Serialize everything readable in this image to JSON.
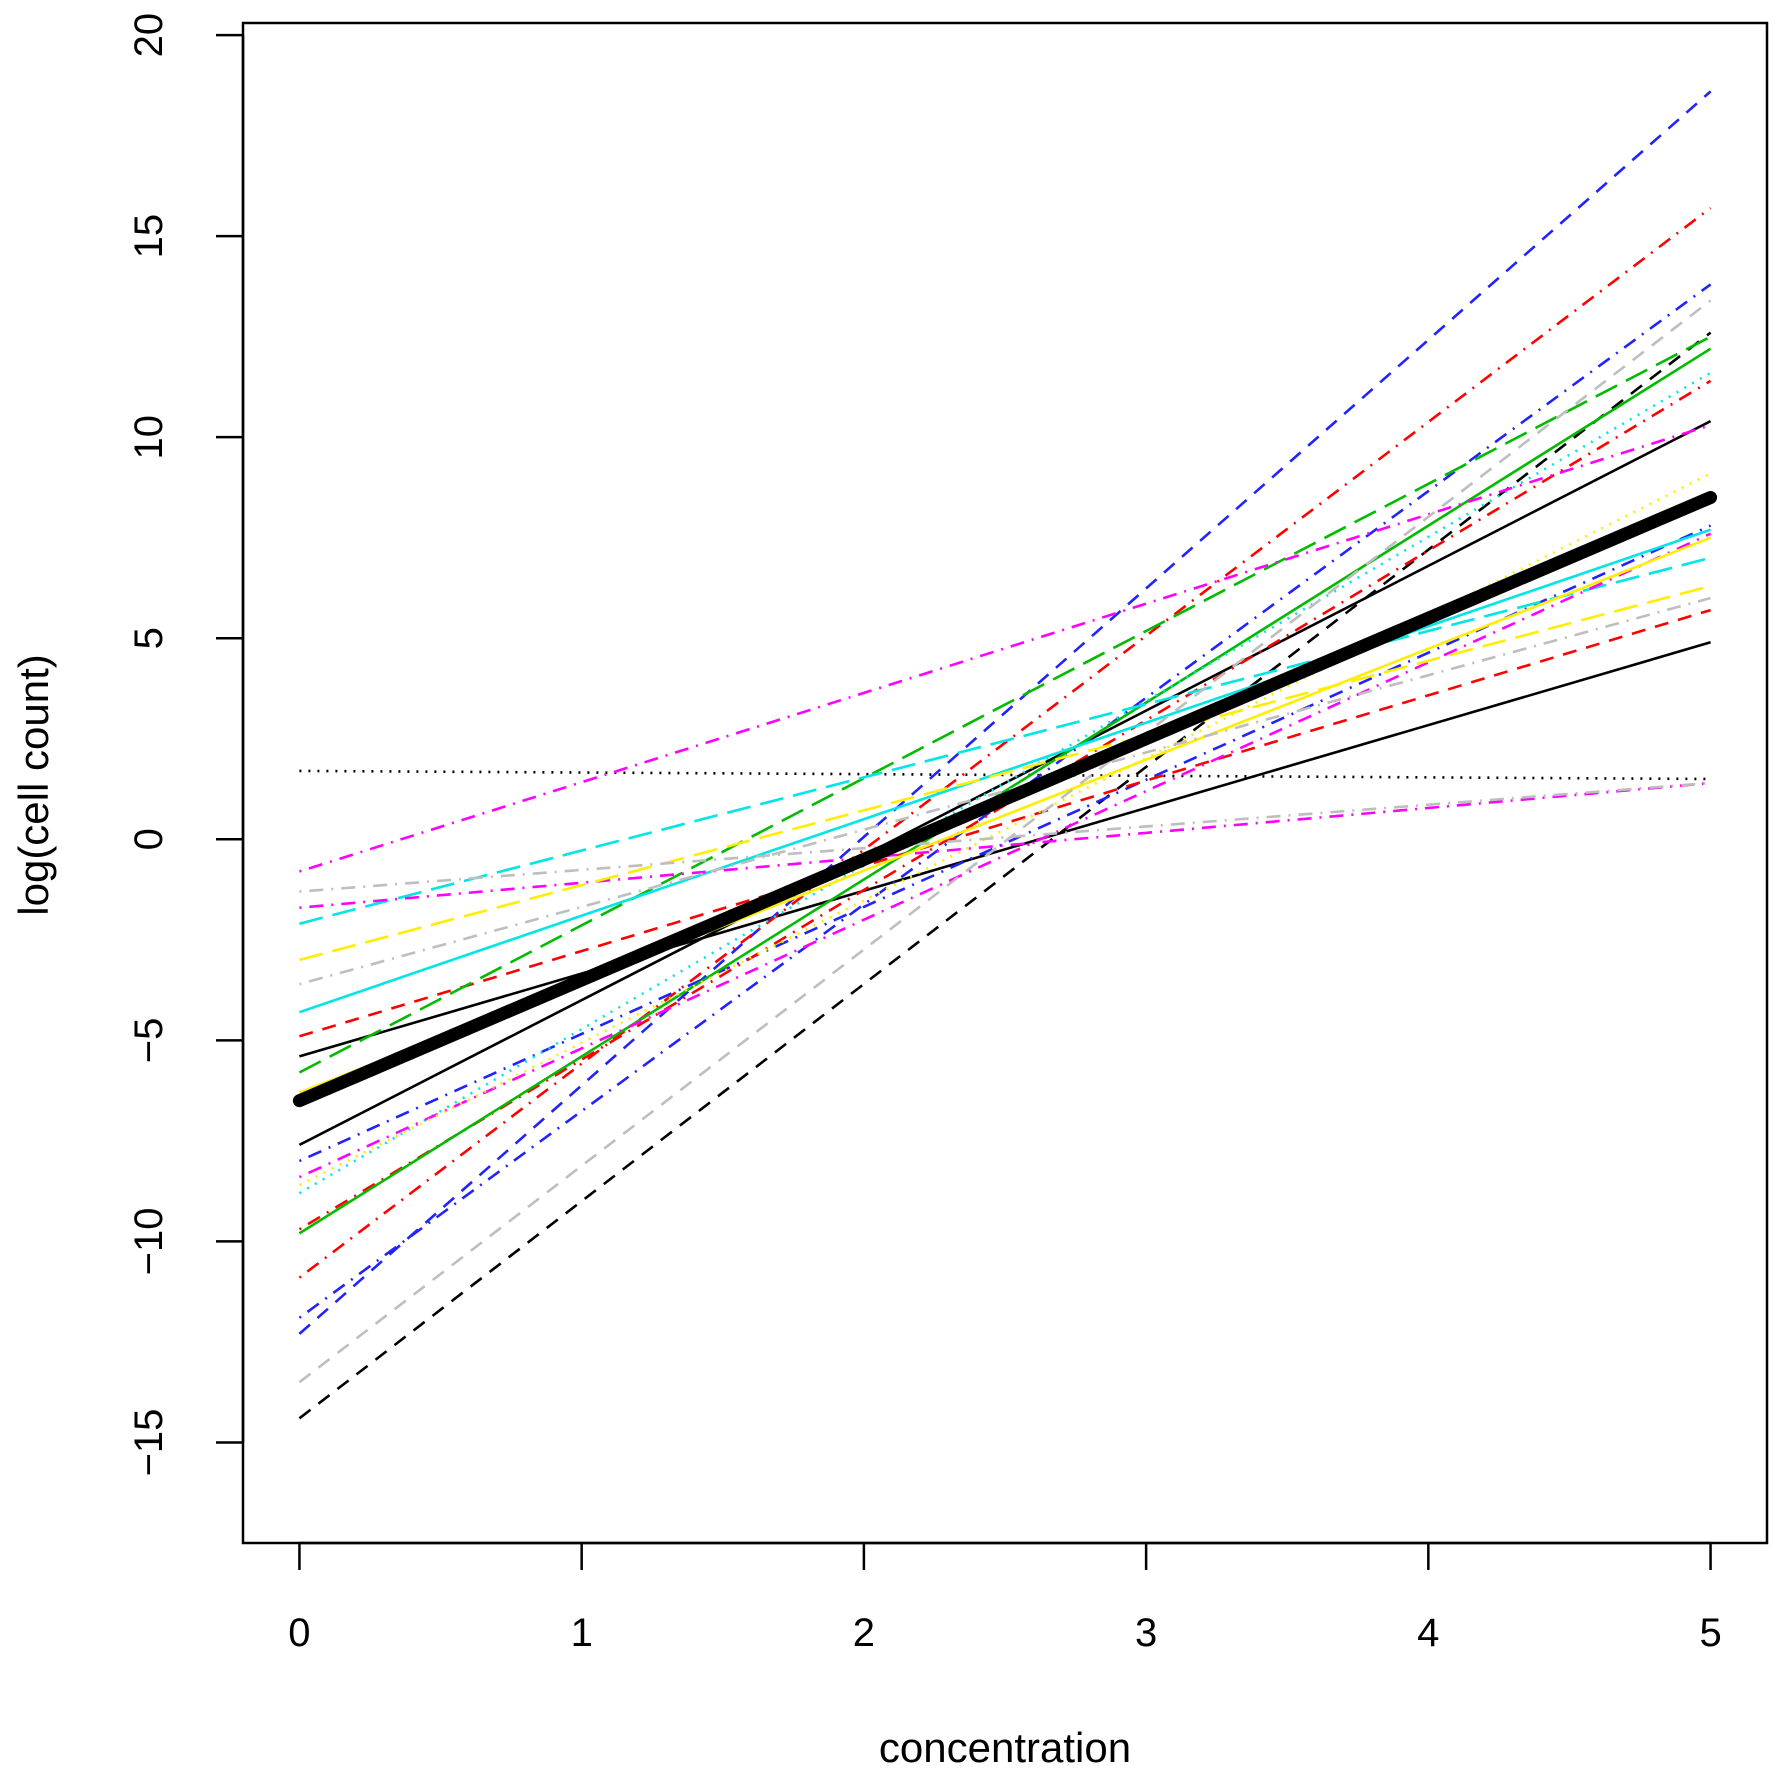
{
  "chart_data": {
    "type": "line",
    "title": "",
    "xlabel": "concentration",
    "ylabel": "log(cell count)",
    "xlim": [
      -0.2,
      5.2
    ],
    "ylim": [
      -17.5,
      20.3
    ],
    "xticks": [
      0,
      1,
      2,
      3,
      4,
      5
    ],
    "yticks": [
      -15,
      -10,
      -5,
      0,
      5,
      10,
      15,
      20
    ],
    "grid": false,
    "legend": "none",
    "series": [
      {
        "color": "#000000",
        "dash": "solid",
        "width": "thick",
        "values": [
          [
            0,
            -6.5
          ],
          [
            5,
            8.5
          ]
        ]
      },
      {
        "color": "#000000",
        "dash": "solid",
        "values": [
          [
            0,
            -5.4
          ],
          [
            5,
            4.9
          ]
        ]
      },
      {
        "color": "#000000",
        "dash": "solid",
        "values": [
          [
            0,
            -7.6
          ],
          [
            5,
            10.4
          ]
        ]
      },
      {
        "color": "#000000",
        "dash": "dashed",
        "values": [
          [
            0,
            -14.4
          ],
          [
            5,
            12.6
          ]
        ]
      },
      {
        "color": "#000000",
        "dash": "dotted",
        "values": [
          [
            0,
            1.7
          ],
          [
            5,
            1.5
          ]
        ]
      },
      {
        "color": "#2222ff",
        "dash": "dashed",
        "values": [
          [
            0,
            -12.3
          ],
          [
            5,
            18.6
          ]
        ]
      },
      {
        "color": "#2222ff",
        "dash": "dashdot",
        "values": [
          [
            0,
            -11.9
          ],
          [
            5,
            13.8
          ]
        ]
      },
      {
        "color": "#2222ff",
        "dash": "dashdot",
        "values": [
          [
            0,
            -8.0
          ],
          [
            5,
            7.8
          ]
        ]
      },
      {
        "color": "#ff0000",
        "dash": "dashdot",
        "values": [
          [
            0,
            -10.9
          ],
          [
            5,
            15.7
          ]
        ]
      },
      {
        "color": "#ff0000",
        "dash": "dashdot",
        "values": [
          [
            0,
            -9.7
          ],
          [
            5,
            11.4
          ]
        ]
      },
      {
        "color": "#ff0000",
        "dash": "dashed",
        "values": [
          [
            0,
            -4.9
          ],
          [
            5,
            5.7
          ]
        ]
      },
      {
        "color": "#00bb00",
        "dash": "solid",
        "values": [
          [
            0,
            -9.8
          ],
          [
            5,
            12.2
          ]
        ]
      },
      {
        "color": "#00bb00",
        "dash": "longdash",
        "values": [
          [
            0,
            -5.8
          ],
          [
            5,
            12.5
          ]
        ]
      },
      {
        "color": "#00bb00",
        "dash": "dotted",
        "values": [
          [
            0,
            -6.4
          ],
          [
            5,
            8.6
          ]
        ]
      },
      {
        "color": "#00e5e5",
        "dash": "solid",
        "values": [
          [
            0,
            -4.3
          ],
          [
            5,
            7.7
          ]
        ]
      },
      {
        "color": "#00e5e5",
        "dash": "longdash",
        "values": [
          [
            0,
            -2.1
          ],
          [
            5,
            7.0
          ]
        ]
      },
      {
        "color": "#00e5e5",
        "dash": "dotted",
        "values": [
          [
            0,
            -8.8
          ],
          [
            5,
            11.6
          ]
        ]
      },
      {
        "color": "#ff00ff",
        "dash": "dashdot",
        "values": [
          [
            0,
            -0.8
          ],
          [
            5,
            10.3
          ]
        ]
      },
      {
        "color": "#ff00ff",
        "dash": "dashdot",
        "values": [
          [
            0,
            -1.7
          ],
          [
            5,
            1.4
          ]
        ]
      },
      {
        "color": "#ff00ff",
        "dash": "dashdot",
        "values": [
          [
            0,
            -8.4
          ],
          [
            5,
            7.6
          ]
        ]
      },
      {
        "color": "#ffee00",
        "dash": "solid",
        "values": [
          [
            0,
            -6.3
          ],
          [
            5,
            7.5
          ]
        ]
      },
      {
        "color": "#ffee00",
        "dash": "longdash",
        "values": [
          [
            0,
            -3.0
          ],
          [
            5,
            6.3
          ]
        ]
      },
      {
        "color": "#ffee00",
        "dash": "dotted",
        "values": [
          [
            0,
            -8.6
          ],
          [
            5,
            9.1
          ]
        ]
      },
      {
        "color": "#bebebe",
        "dash": "dashed",
        "values": [
          [
            0,
            -13.5
          ],
          [
            5,
            13.4
          ]
        ]
      },
      {
        "color": "#bebebe",
        "dash": "dashdot",
        "values": [
          [
            0,
            -1.3
          ],
          [
            5,
            1.4
          ]
        ]
      },
      {
        "color": "#bebebe",
        "dash": "dashdot",
        "values": [
          [
            0,
            -3.6
          ],
          [
            5,
            6.0
          ]
        ]
      }
    ]
  }
}
